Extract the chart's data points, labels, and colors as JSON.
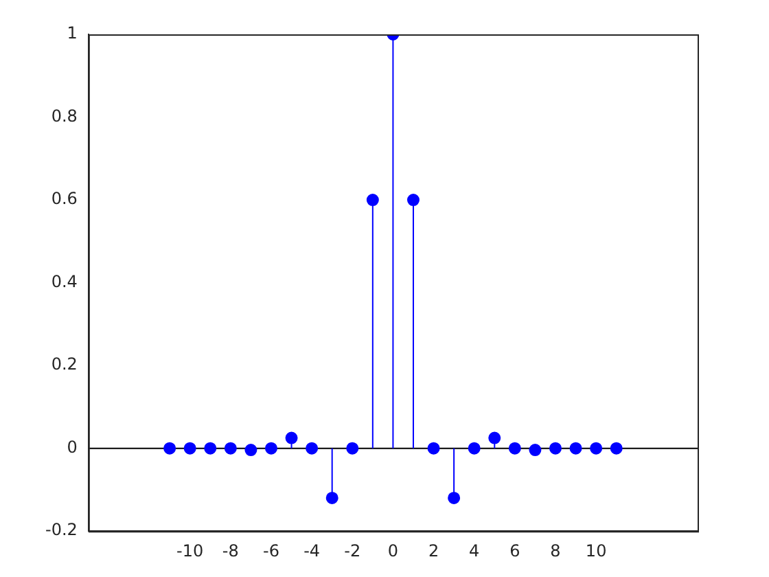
{
  "chart_data": {
    "type": "lollipop",
    "x": [
      -11,
      -10,
      -9,
      -8,
      -7,
      -6,
      -5,
      -4,
      -3,
      -2,
      -1,
      0,
      1,
      2,
      3,
      4,
      5,
      6,
      7,
      8,
      9,
      10,
      11
    ],
    "series": [
      {
        "color": "#0000ff",
        "values": [
          0,
          0,
          0,
          0,
          -0.004,
          0,
          0.025,
          0,
          -0.12,
          0,
          0.6,
          1,
          0.6,
          0,
          -0.12,
          0,
          0.025,
          0,
          -0.004,
          0,
          0,
          0,
          0
        ]
      }
    ],
    "xlim": [
      -15,
      15
    ],
    "xticks": [
      -10,
      -8,
      -6,
      -4,
      -2,
      0,
      2,
      4,
      6,
      8,
      10
    ],
    "ylim": [
      -0.2,
      1
    ],
    "yticks": [
      -0.2,
      0,
      0.2,
      0.4,
      0.6,
      0.8,
      1
    ],
    "ref_lines": [
      {
        "axis": "y",
        "value": 0,
        "color": "#000000"
      }
    ],
    "marker": "circle",
    "grid": false,
    "legend": false
  }
}
